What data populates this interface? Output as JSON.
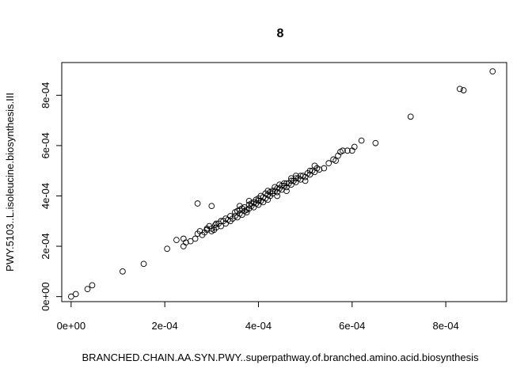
{
  "chart_data": {
    "type": "scatter",
    "title": "8",
    "xlabel": "BRANCHED.CHAIN.AA.SYN.PWY..superpathway.of.branched.amino.acid.biosynthesis",
    "ylabel": "PWY.5103..L.isoleucine.biosynthesis.III",
    "xlim": [
      -2e-05,
      0.00093
    ],
    "ylim": [
      -2e-05,
      0.00093
    ],
    "x_ticks": [
      0,
      0.0002,
      0.0004,
      0.0006,
      0.0008
    ],
    "x_tick_labels": [
      "0e+00",
      "2e-04",
      "4e-04",
      "6e-04",
      "8e-04"
    ],
    "y_ticks": [
      0,
      0.0002,
      0.0004,
      0.0006,
      0.0008
    ],
    "y_tick_labels": [
      "0e+00",
      "2e-04",
      "4e-04",
      "6e-04",
      "8e-04"
    ],
    "grid": false,
    "marker": "open-circle",
    "points": [
      [
        0.0,
        0.0
      ],
      [
        1e-05,
        1e-05
      ],
      [
        3.5e-05,
        3e-05
      ],
      [
        4.5e-05,
        4.5e-05
      ],
      [
        0.00011,
        0.0001
      ],
      [
        0.000155,
        0.00013
      ],
      [
        0.000205,
        0.00019
      ],
      [
        0.000225,
        0.000225
      ],
      [
        0.00024,
        0.0002
      ],
      [
        0.000245,
        0.000215
      ],
      [
        0.00024,
        0.00023
      ],
      [
        0.000255,
        0.00022
      ],
      [
        0.000265,
        0.00023
      ],
      [
        0.00027,
        0.00025
      ],
      [
        0.000275,
        0.00026
      ],
      [
        0.00028,
        0.000245
      ],
      [
        0.000285,
        0.000255
      ],
      [
        0.00029,
        0.000265
      ],
      [
        0.000295,
        0.00028
      ],
      [
        0.0003,
        0.00027
      ],
      [
        0.000305,
        0.000265
      ],
      [
        0.000308,
        0.000285
      ],
      [
        0.00031,
        0.000275
      ],
      [
        0.000315,
        0.00029
      ],
      [
        0.00032,
        0.00028
      ],
      [
        0.000325,
        0.0003
      ],
      [
        0.00033,
        0.00029
      ],
      [
        0.000335,
        0.000305
      ],
      [
        0.00034,
        0.0003
      ],
      [
        0.000345,
        0.00031
      ],
      [
        0.00035,
        0.00032
      ],
      [
        0.000355,
        0.000315
      ],
      [
        0.00036,
        0.00033
      ],
      [
        0.000365,
        0.000325
      ],
      [
        0.00037,
        0.00034
      ],
      [
        0.000375,
        0.000335
      ],
      [
        0.00038,
        0.00035
      ],
      [
        0.000385,
        0.00036
      ],
      [
        0.00039,
        0.000355
      ],
      [
        0.000395,
        0.00037
      ],
      [
        0.0004,
        0.000365
      ],
      [
        0.000405,
        0.00038
      ],
      [
        0.00041,
        0.000375
      ],
      [
        0.000415,
        0.00039
      ],
      [
        0.00042,
        0.000385
      ],
      [
        0.000425,
        0.0004
      ],
      [
        0.00043,
        0.00041
      ],
      [
        0.000435,
        0.00042
      ],
      [
        0.00044,
        0.000415
      ],
      [
        0.000445,
        0.00043
      ],
      [
        0.00045,
        0.000425
      ],
      [
        0.000455,
        0.00044
      ],
      [
        0.00046,
        0.000435
      ],
      [
        0.000465,
        0.00045
      ],
      [
        0.00047,
        0.000445
      ],
      [
        0.000475,
        0.00046
      ],
      [
        0.00048,
        0.000455
      ],
      [
        0.000485,
        0.00047
      ],
      [
        0.00049,
        0.000465
      ],
      [
        0.000495,
        0.00048
      ],
      [
        0.0005,
        0.000475
      ],
      [
        0.000505,
        0.00049
      ],
      [
        0.00051,
        0.000485
      ],
      [
        0.000515,
        0.0005
      ],
      [
        0.00052,
        0.000495
      ],
      [
        0.000525,
        0.00051
      ],
      [
        0.00053,
        0.000505
      ],
      [
        0.00054,
        0.00051
      ],
      [
        0.00055,
        0.00053
      ],
      [
        0.00056,
        0.000545
      ],
      [
        0.00057,
        0.00056
      ],
      [
        0.000575,
        0.000575
      ],
      [
        0.00058,
        0.00058
      ],
      [
        0.00059,
        0.00058
      ],
      [
        0.0006,
        0.00058
      ],
      [
        0.000605,
        0.000595
      ],
      [
        0.00062,
        0.00062
      ],
      [
        0.00065,
        0.00061
      ],
      [
        0.000725,
        0.000715
      ],
      [
        0.00083,
        0.000825
      ],
      [
        0.000838,
        0.00082
      ],
      [
        0.0009,
        0.000895
      ],
      [
        0.00035,
        0.000335
      ],
      [
        0.00036,
        0.000345
      ],
      [
        0.00037,
        0.000355
      ],
      [
        0.00038,
        0.000365
      ],
      [
        0.00039,
        0.000375
      ],
      [
        0.0004,
        0.00039
      ],
      [
        0.00041,
        0.000395
      ],
      [
        0.00042,
        0.000405
      ],
      [
        0.00043,
        0.00042
      ],
      [
        0.00044,
        0.00043
      ],
      [
        0.00045,
        0.00044
      ],
      [
        0.00046,
        0.00045
      ],
      [
        0.00047,
        0.00046
      ],
      [
        0.00048,
        0.00047
      ],
      [
        0.00033,
        0.00031
      ],
      [
        0.00034,
        0.00032
      ],
      [
        0.000355,
        0.00034
      ],
      [
        0.000365,
        0.00035
      ],
      [
        0.000375,
        0.000345
      ],
      [
        0.000385,
        0.00037
      ],
      [
        0.000395,
        0.000385
      ],
      [
        0.000405,
        0.0004
      ],
      [
        0.000415,
        0.00041
      ],
      [
        0.000425,
        0.000415
      ],
      [
        0.000435,
        0.000435
      ],
      [
        0.000445,
        0.000445
      ],
      [
        0.000455,
        0.00045
      ],
      [
        0.00047,
        0.00047
      ],
      [
        0.00049,
        0.00048
      ],
      [
        0.00051,
        0.0005
      ],
      [
        0.00044,
        0.0004
      ],
      [
        0.0005,
        0.00046
      ],
      [
        0.00027,
        0.00037
      ],
      [
        0.0003,
        0.00036
      ],
      [
        0.00036,
        0.00036
      ],
      [
        0.000565,
        0.00054
      ],
      [
        0.00031,
        0.00029
      ],
      [
        0.00032,
        0.0003
      ],
      [
        0.0003,
        0.00026
      ],
      [
        0.00029,
        0.00027
      ],
      [
        0.00038,
        0.00038
      ],
      [
        0.0004,
        0.00038
      ],
      [
        0.00042,
        0.00042
      ],
      [
        0.00046,
        0.00042
      ],
      [
        0.00052,
        0.00052
      ],
      [
        0.00048,
        0.00048
      ]
    ]
  }
}
